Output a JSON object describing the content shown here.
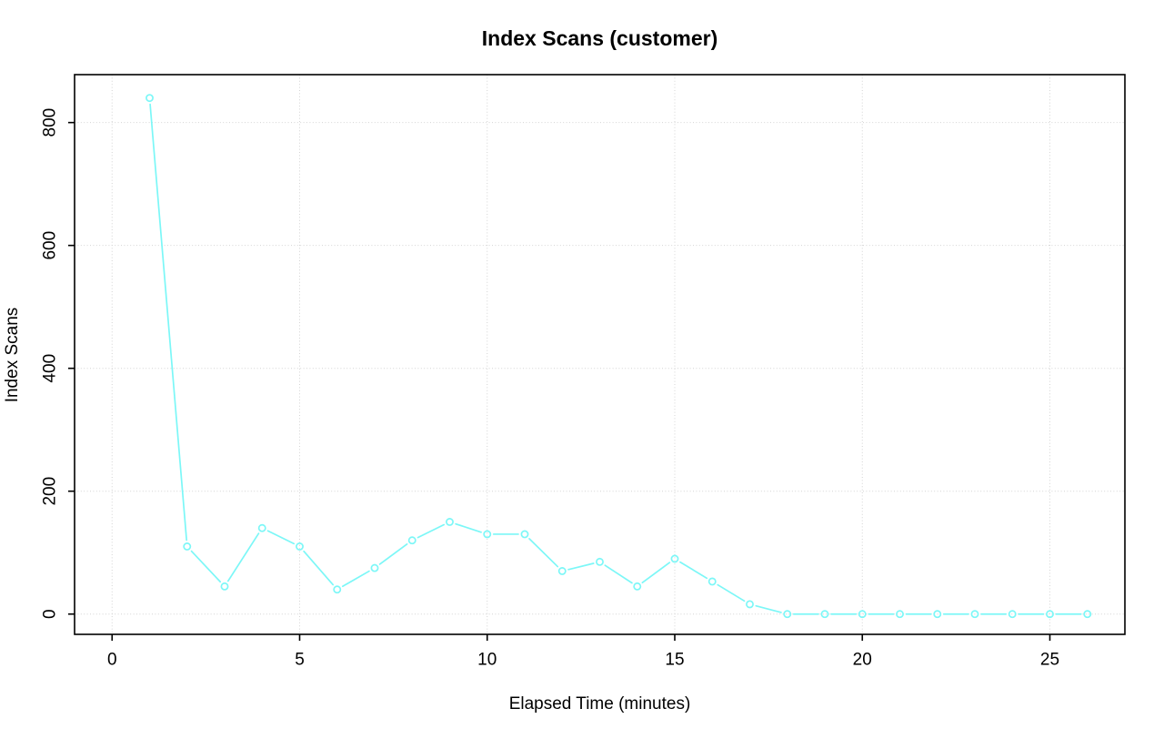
{
  "page": {
    "background": "#FFFFFF"
  },
  "chart_data": {
    "type": "line",
    "title": "Index Scans (customer)",
    "xlabel": "Elapsed Time (minutes)",
    "ylabel": "Index Scans",
    "x": [
      1,
      2,
      3,
      4,
      5,
      6,
      7,
      8,
      9,
      10,
      11,
      12,
      13,
      14,
      15,
      16,
      17,
      18,
      19,
      20,
      21,
      22,
      23,
      24,
      25,
      26
    ],
    "values": [
      840,
      110,
      45,
      140,
      110,
      40,
      75,
      120,
      150,
      130,
      130,
      70,
      85,
      45,
      90,
      53,
      16,
      0,
      0,
      0,
      0,
      0,
      0,
      0,
      0,
      0
    ],
    "x_ticks": [
      0,
      5,
      10,
      15,
      20,
      25
    ],
    "y_ticks": [
      0,
      200,
      400,
      600,
      800
    ],
    "xlim": [
      -1,
      27
    ],
    "ylim": [
      -33,
      878
    ],
    "grid": true,
    "legend_position": "none",
    "marker": "open-circle",
    "line_style": "solid-with-point-gaps",
    "line_color": "#7CF7F7",
    "grid_color": "#D4D4D4",
    "axis_color": "#000000",
    "text_color": "#000000"
  }
}
